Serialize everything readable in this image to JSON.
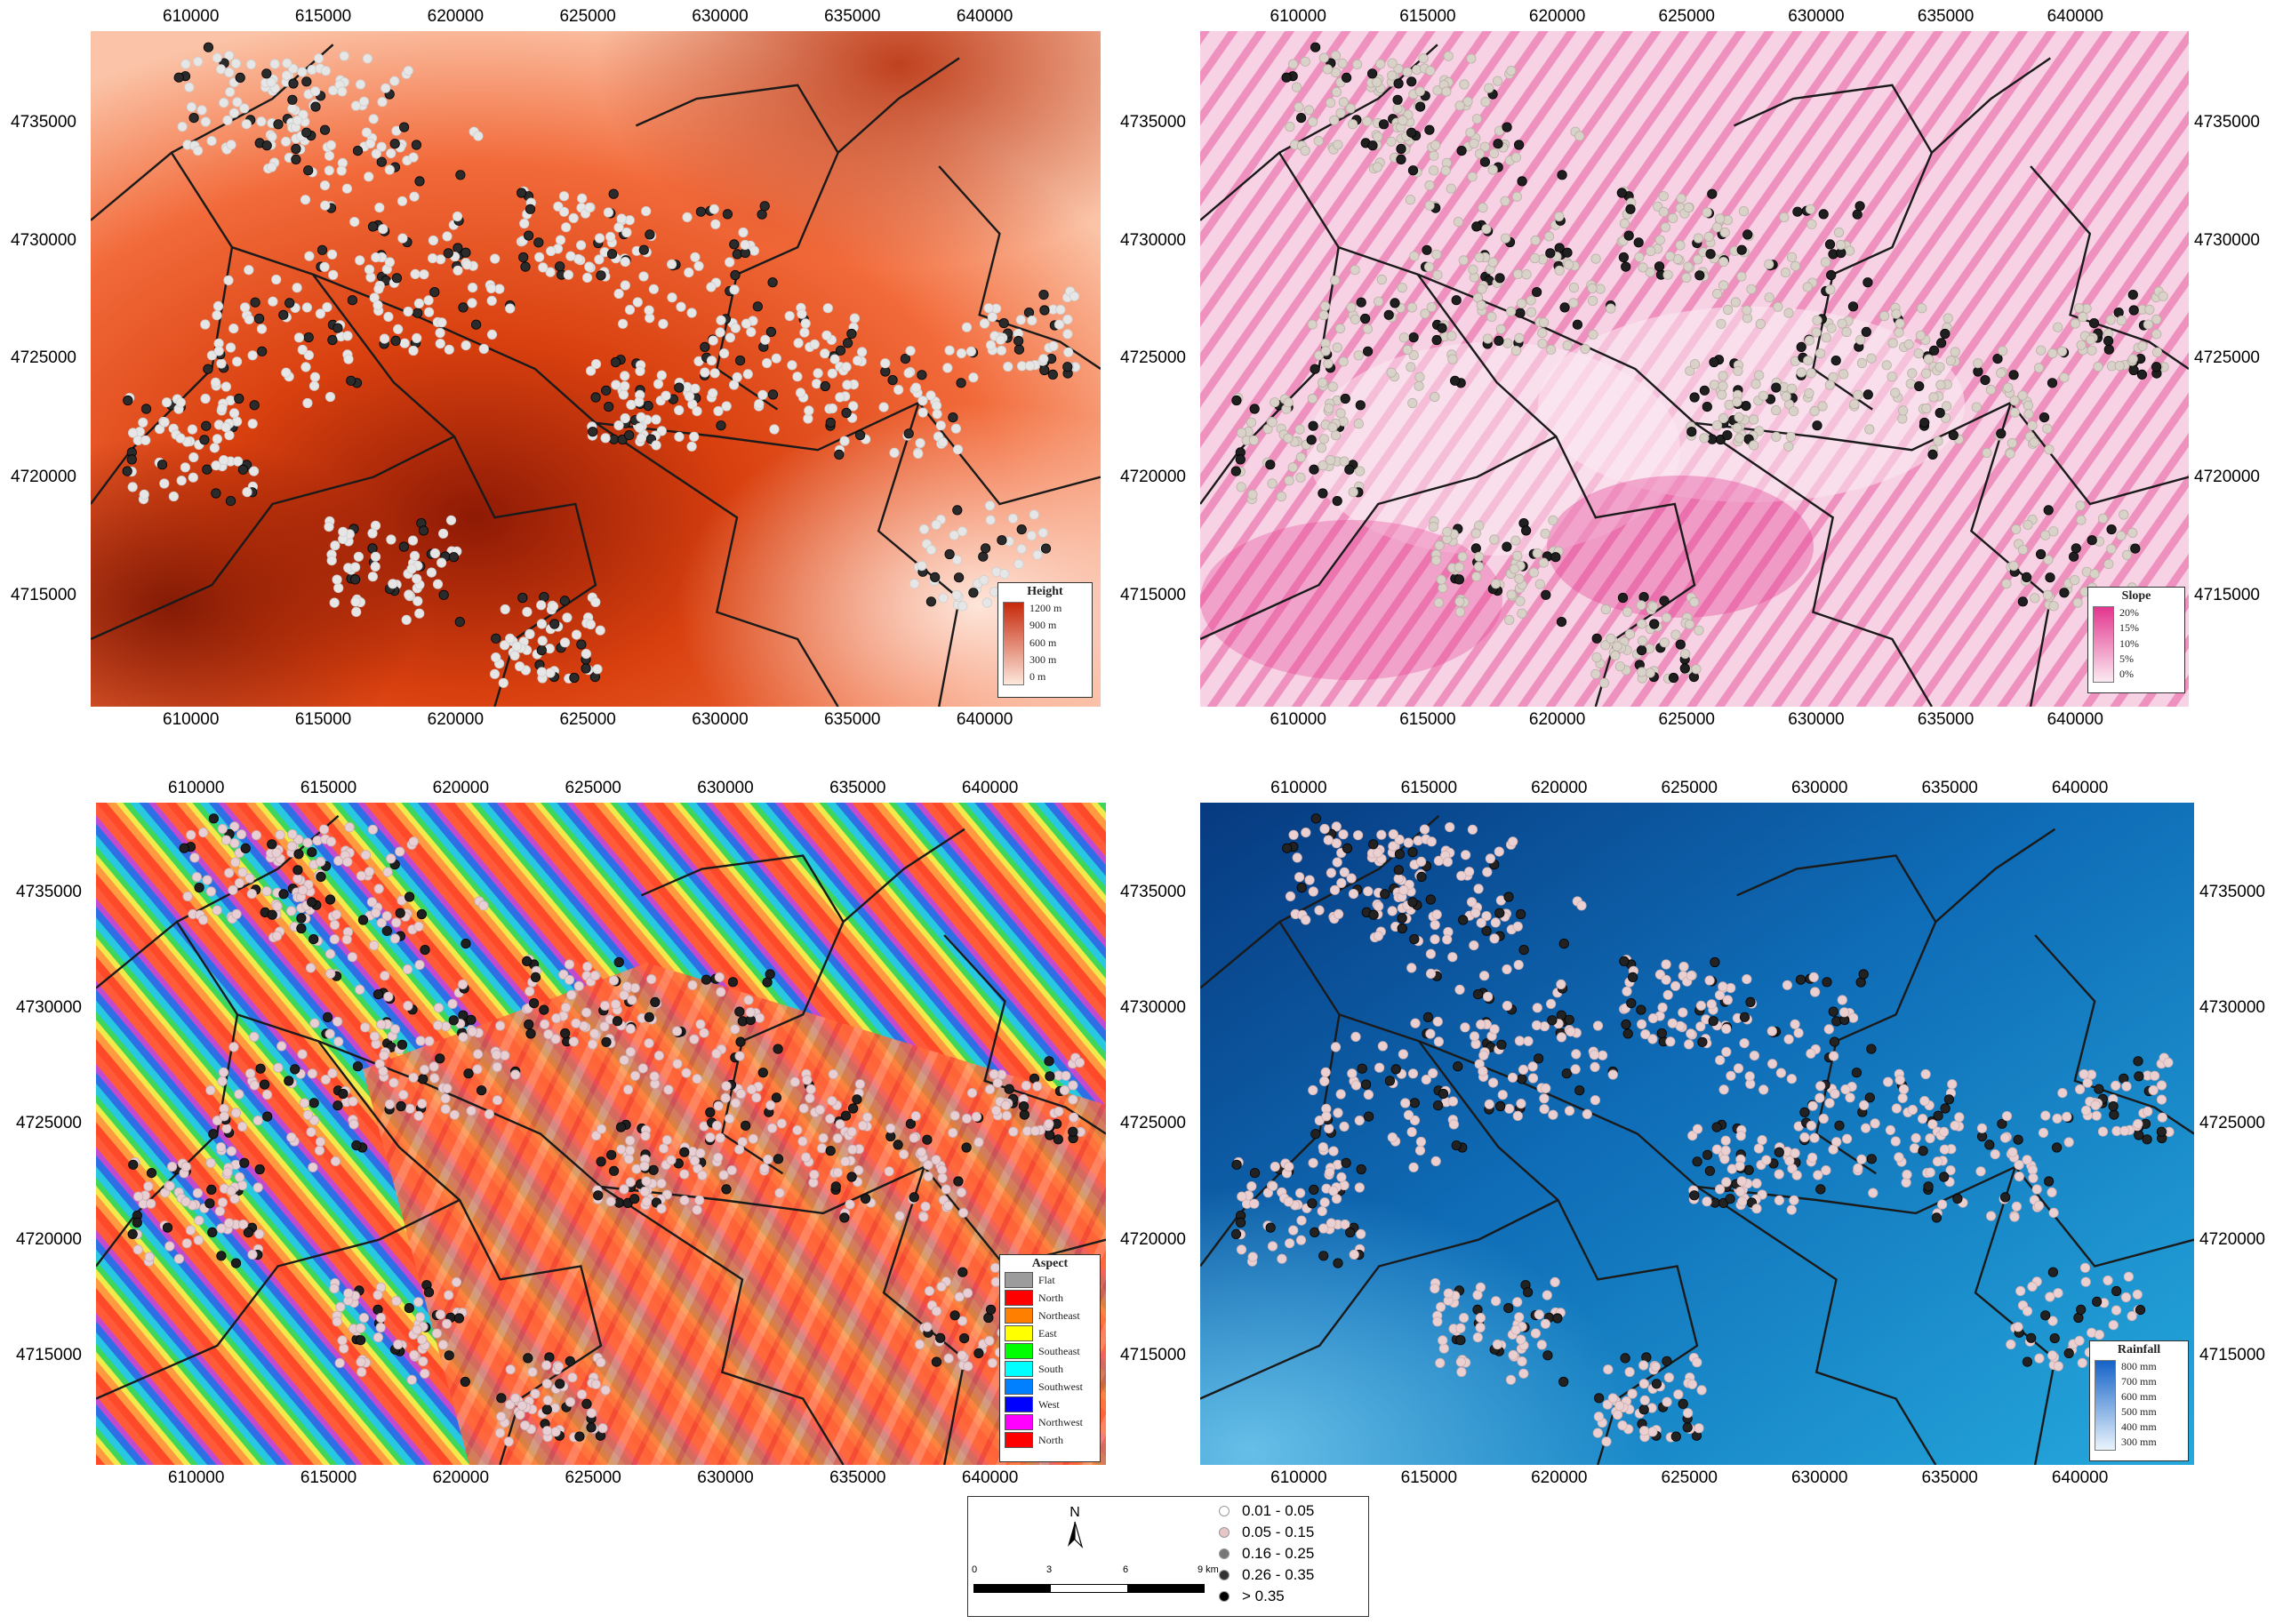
{
  "maps": [
    {
      "id": "height",
      "legend_title": "Height",
      "legend_labels": [
        "1200 m",
        "900 m",
        "600 m",
        "300 m",
        "0 m"
      ],
      "colors": {
        "high": "#8e1a05",
        "mid": "#e84a17",
        "low": "#fde7dc"
      }
    },
    {
      "id": "slope",
      "legend_title": "Slope",
      "legend_labels": [
        "20%",
        "15%",
        "10%",
        "5%",
        "0%"
      ],
      "colors": {
        "high": "#e3368e",
        "low": "#fbeaf2"
      }
    },
    {
      "id": "aspect",
      "legend_title": "Aspect",
      "legend_items": [
        {
          "label": "Flat",
          "color": "#9c9c9c"
        },
        {
          "label": "North",
          "color": "#ff0000"
        },
        {
          "label": "Northeast",
          "color": "#ff7f00"
        },
        {
          "label": "East",
          "color": "#ffff00"
        },
        {
          "label": "Southeast",
          "color": "#00ff00"
        },
        {
          "label": "South",
          "color": "#00ffff"
        },
        {
          "label": "Southwest",
          "color": "#0080ff"
        },
        {
          "label": "West",
          "color": "#0000ff"
        },
        {
          "label": "Northwest",
          "color": "#ff00ff"
        },
        {
          "label": "North",
          "color": "#ff0000"
        }
      ]
    },
    {
      "id": "rainfall",
      "legend_title": "Rainfall",
      "legend_labels": [
        "800 mm",
        "700 mm",
        "600 mm",
        "500 mm",
        "400 mm",
        "300 mm"
      ],
      "colors": {
        "high": "#0a3f86",
        "low": "#1fa0d6"
      }
    }
  ],
  "x_ticks": [
    "610000",
    "615000",
    "620000",
    "625000",
    "630000",
    "635000",
    "640000"
  ],
  "y_ticks": [
    "4735000",
    "4730000",
    "4725000",
    "4720000",
    "4715000"
  ],
  "north_label": "N",
  "scale_labels": [
    "0",
    "3",
    "6",
    "9 km"
  ],
  "classes": [
    {
      "label": "0.01 - 0.05",
      "color": "#ffffff"
    },
    {
      "label": "0.05 - 0.15",
      "color": "#e6c6c6"
    },
    {
      "label": "0.16 - 0.25",
      "color": "#777777"
    },
    {
      "label": "0.26 - 0.35",
      "color": "#333333"
    },
    {
      "label": "> 0.35",
      "color": "#000000"
    }
  ]
}
